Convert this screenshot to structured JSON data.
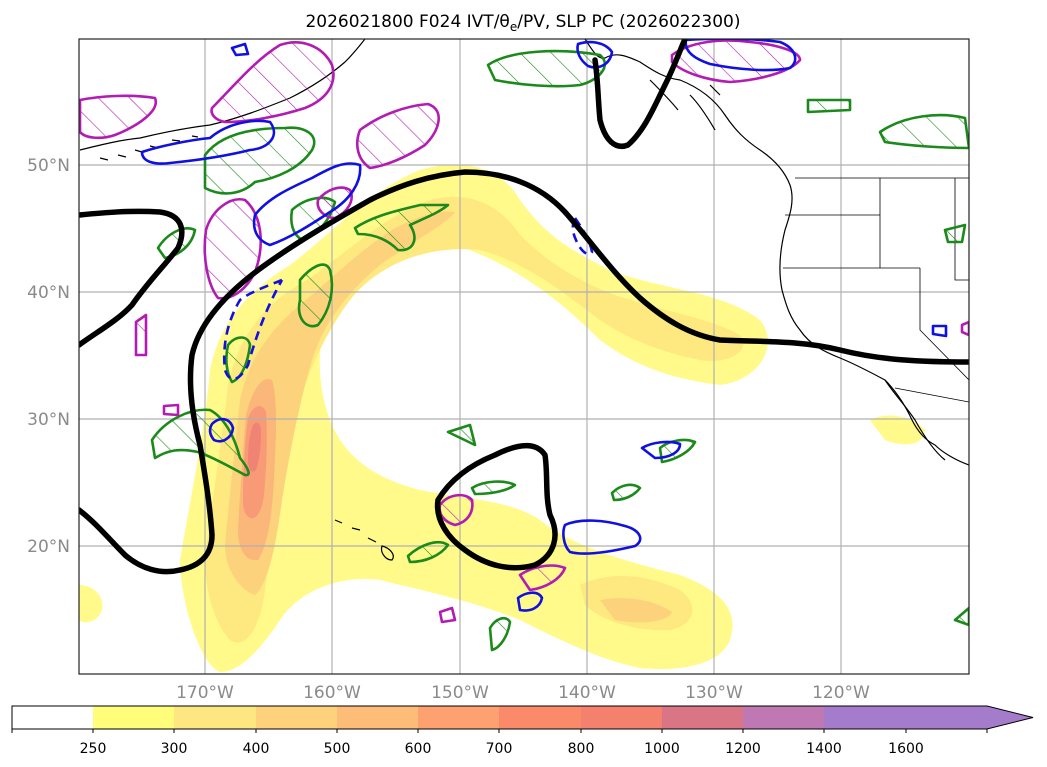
{
  "title": "2026021800 F024 IVT/θ",
  "title_sub": "e",
  "title_rest": "/PV, SLP PC (2026022300)",
  "lat_labels": [
    "50°N",
    "40°N",
    "30°N",
    "20°N"
  ],
  "lon_labels": [
    "170°W",
    "160°W",
    "150°W",
    "140°W",
    "130°W",
    "120°W"
  ],
  "colorbar": {
    "ticks": [
      "250",
      "300",
      "400",
      "500",
      "600",
      "700",
      "800",
      "1000",
      "1200",
      "1400",
      "1600"
    ],
    "colors": [
      "#ffffff",
      "#fffd7a",
      "#fee680",
      "#fed27c",
      "#fdbd78",
      "#fda170",
      "#fb8a6a",
      "#f4806e",
      "#d97585",
      "#bf78b4",
      "#a57bcc"
    ]
  },
  "ivt_colors": [
    "#fffa8a",
    "#fee880",
    "#fdd27c",
    "#fbb77a",
    "#f79a75",
    "#f08474"
  ],
  "contour_colors": {
    "pv_green": "#1b8a1b",
    "pv_magenta": "#b21cb2",
    "pv_blue": "#1010e0",
    "slp": "#000000"
  }
}
